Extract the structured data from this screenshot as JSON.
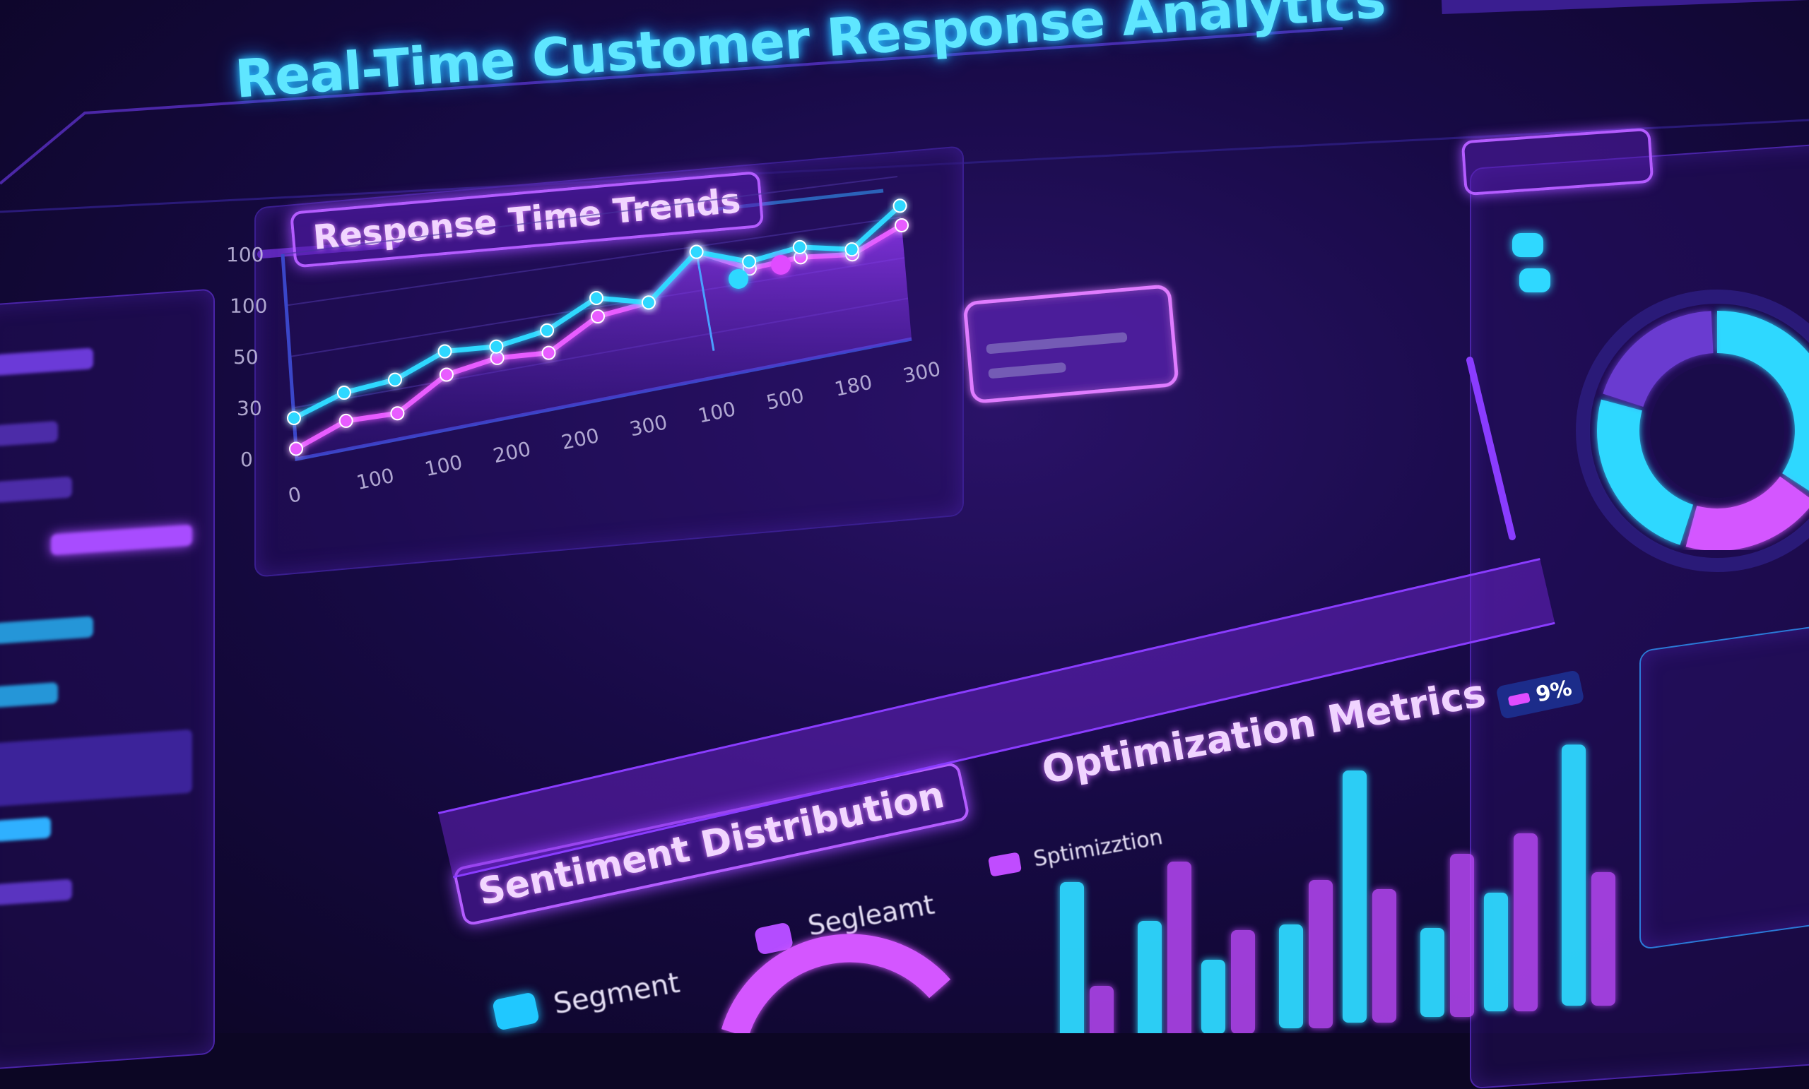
{
  "header": {
    "title": "Real-Time Customer Response Analytics"
  },
  "response_panel": {
    "title": "Response Time Trends",
    "legend_colors": [
      "#2fd0ff",
      "#e04cff",
      "#7a4bd6"
    ]
  },
  "optimization_panel": {
    "title": "Optimization Metrics",
    "legend_label": "Sptimizztion",
    "legend_color": "#c04cff",
    "value_badge": "9%"
  },
  "sentiment_panel": {
    "title": "Sentiment Distribution",
    "legend": [
      {
        "label": "Segment",
        "color": "#20c8ff"
      },
      {
        "label": "Segleamt",
        "color": "#b44cff"
      }
    ]
  },
  "colors": {
    "accent_cyan": "#2fd8ff",
    "accent_pink": "#e85cff",
    "accent_purple": "#8a3cff",
    "background": "#170a45"
  },
  "chart_data": [
    {
      "type": "line",
      "title": "Response Time Trends",
      "y_ticks": [
        "100",
        "100",
        "50",
        "30",
        "0"
      ],
      "x_ticks": [
        "0",
        "100",
        "100",
        "200",
        "200",
        "300",
        "100",
        "500",
        "180",
        "300"
      ],
      "ylim": [
        0,
        100
      ],
      "grid": true,
      "series": [
        {
          "color": "#2fd8ff",
          "values": [
            20,
            28,
            30,
            40,
            38,
            42,
            55,
            48,
            72,
            62,
            66,
            60,
            82
          ]
        },
        {
          "color": "#e85cff",
          "values": [
            5,
            14,
            13,
            28,
            32,
            30,
            45,
            48,
            72,
            58,
            60,
            57,
            70
          ]
        }
      ]
    },
    {
      "type": "bar",
      "title": "Optimization Metrics",
      "series": [
        {
          "color": "#2fd8ff",
          "values": [
            55,
            40,
            25,
            35,
            85,
            30,
            40,
            88
          ]
        },
        {
          "color": "#c04cff",
          "values": [
            20,
            60,
            35,
            50,
            45,
            55,
            60,
            45
          ]
        }
      ]
    },
    {
      "type": "pie",
      "title": "",
      "values": [
        35,
        20,
        25,
        20
      ],
      "colors": [
        "#2fd8ff",
        "#d457ff",
        "#2fd8ff",
        "#6a3ad0"
      ]
    }
  ]
}
